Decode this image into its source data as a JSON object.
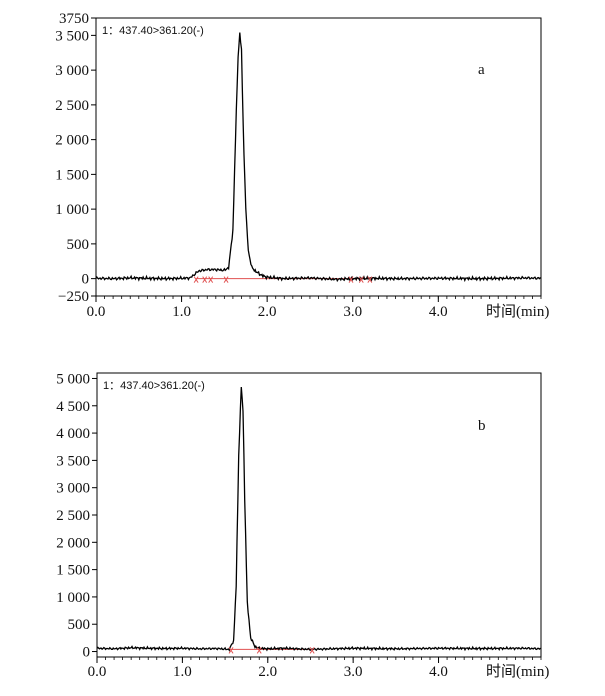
{
  "chart_data": [
    {
      "type": "line",
      "panel_label": "a",
      "annotation": "1：437.40>361.20(-)",
      "xlabel": "时间(min)",
      "xlim": [
        0.0,
        5.2
      ],
      "ylim": [
        -250,
        3750
      ],
      "x_ticks": [
        0.0,
        1.0,
        2.0,
        3.0,
        4.0
      ],
      "x_tick_labels": [
        "0.0",
        "1.0",
        "2.0",
        "3.0",
        "4.0"
      ],
      "y_ticks": [
        3750,
        3500,
        3000,
        2500,
        2000,
        1500,
        1000,
        500,
        0,
        -250
      ],
      "y_tick_labels": [
        "3750",
        "3 500",
        "3 000",
        "2 500",
        "2 000",
        "1 500",
        "1 000",
        "500",
        "0",
        "−250"
      ],
      "series": [
        {
          "x": [
            0.0,
            0.2,
            0.4,
            0.6,
            0.8,
            1.0,
            1.1,
            1.15,
            1.2,
            1.3,
            1.4,
            1.5,
            1.55,
            1.6,
            1.63,
            1.66,
            1.68,
            1.7,
            1.72,
            1.75,
            1.78,
            1.82,
            1.88,
            1.95,
            2.0,
            2.2,
            2.5,
            2.8,
            3.0,
            3.2,
            3.5,
            4.0,
            4.5,
            5.0,
            5.2
          ],
          "y": [
            5,
            0,
            10,
            5,
            0,
            5,
            10,
            60,
            110,
            130,
            130,
            120,
            160,
            700,
            2000,
            3200,
            3520,
            3300,
            2200,
            1000,
            400,
            160,
            90,
            40,
            20,
            0,
            10,
            -10,
            0,
            5,
            0,
            5,
            0,
            10,
            5
          ]
        }
      ],
      "markers_x": [
        1.17,
        1.27,
        1.34,
        1.52,
        2.98,
        3.1,
        3.2
      ]
    },
    {
      "type": "line",
      "panel_label": "b",
      "annotation": "1：437.40>361.20(-)",
      "xlabel": "时间(min)",
      "xlim": [
        0.0,
        5.2
      ],
      "ylim": [
        -100,
        5100
      ],
      "x_ticks": [
        0.0,
        1.0,
        2.0,
        3.0,
        4.0
      ],
      "x_tick_labels": [
        "0.0",
        "1.0",
        "2.0",
        "3.0",
        "4.0"
      ],
      "y_ticks": [
        5000,
        4500,
        4000,
        3500,
        3000,
        2500,
        2000,
        1500,
        1000,
        500,
        0
      ],
      "y_tick_labels": [
        "5 000",
        "4 500",
        "4 000",
        "3 500",
        "3 000",
        "2 500",
        "2 000",
        "1 500",
        "1 000",
        "500",
        "0"
      ],
      "series": [
        {
          "x": [
            0.0,
            0.2,
            0.4,
            0.6,
            0.8,
            1.0,
            1.2,
            1.4,
            1.55,
            1.6,
            1.63,
            1.66,
            1.69,
            1.71,
            1.73,
            1.76,
            1.8,
            1.85,
            1.9,
            2.0,
            2.2,
            2.5,
            3.0,
            3.5,
            4.0,
            4.5,
            5.0,
            5.2
          ],
          "y": [
            60,
            50,
            70,
            60,
            55,
            60,
            50,
            55,
            40,
            200,
            1200,
            3600,
            4850,
            4400,
            2800,
            900,
            250,
            90,
            60,
            50,
            60,
            40,
            60,
            50,
            60,
            55,
            60,
            50
          ]
        }
      ],
      "markers_x": [
        1.57,
        1.9,
        2.52
      ]
    }
  ]
}
